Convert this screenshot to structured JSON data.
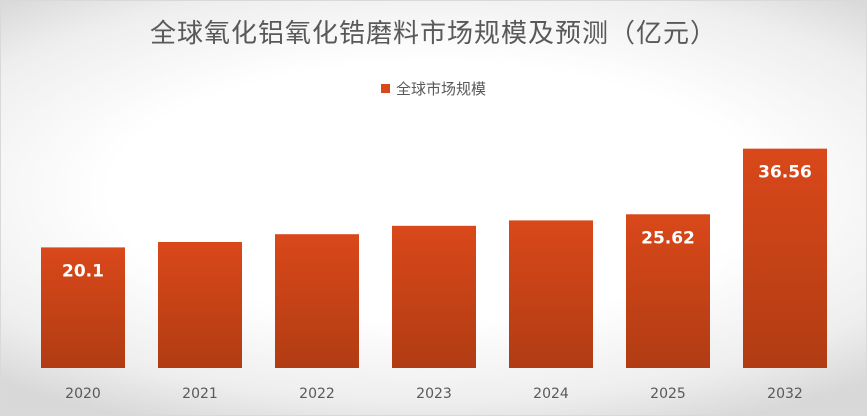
{
  "chart_data": {
    "type": "bar",
    "title": "全球氧化铝氧化锆磨料市场规模及预测（亿元）",
    "categories": [
      "2020",
      "2021",
      "2022",
      "2023",
      "2024",
      "2025",
      "2032"
    ],
    "series": [
      {
        "name": "全球市场规模",
        "values": [
          20.1,
          21.0,
          22.3,
          23.7,
          24.6,
          25.62,
          36.56
        ],
        "data_labels": [
          "20.1",
          "",
          "",
          "",
          "",
          "25.62",
          "36.56"
        ]
      }
    ],
    "ylim": [
      0,
      40
    ],
    "grid": false,
    "legend_position": "top-center",
    "colors": {
      "bar_top": "#d9481a",
      "bar_bottom": "#b13c13",
      "text": "#595959"
    }
  }
}
